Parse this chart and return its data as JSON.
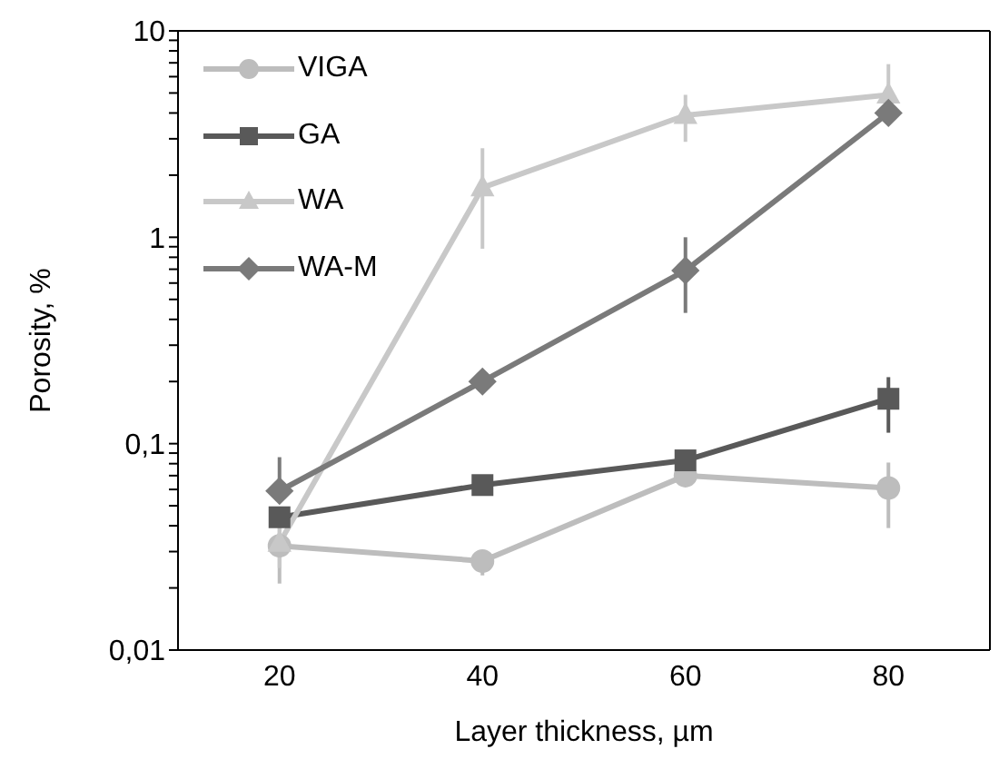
{
  "chart_data": {
    "type": "line",
    "xlabel": "Layer thickness, µm",
    "ylabel": "Porosity, %",
    "categories": [
      "20",
      "40",
      "60",
      "80"
    ],
    "log": "y",
    "ylim": [
      0.01,
      10
    ],
    "yticks": [
      {
        "value": 0.01,
        "label": "0,01"
      },
      {
        "value": 0.02,
        "label": null
      },
      {
        "value": 0.03,
        "label": null
      },
      {
        "value": 0.04,
        "label": null
      },
      {
        "value": 0.05,
        "label": null
      },
      {
        "value": 0.06,
        "label": null
      },
      {
        "value": 0.07,
        "label": null
      },
      {
        "value": 0.08,
        "label": null
      },
      {
        "value": 0.09,
        "label": null
      },
      {
        "value": 0.1,
        "label": "0,1"
      },
      {
        "value": 0.2,
        "label": null
      },
      {
        "value": 0.3,
        "label": null
      },
      {
        "value": 0.4,
        "label": null
      },
      {
        "value": 0.5,
        "label": null
      },
      {
        "value": 0.6,
        "label": null
      },
      {
        "value": 0.7,
        "label": null
      },
      {
        "value": 0.8,
        "label": null
      },
      {
        "value": 0.9,
        "label": null
      },
      1,
      {
        "value": 2,
        "label": null
      },
      {
        "value": 3,
        "label": null
      },
      {
        "value": 4,
        "label": null
      },
      {
        "value": 5,
        "label": null
      },
      {
        "value": 6,
        "label": null
      },
      {
        "value": 7,
        "label": null
      },
      {
        "value": 8,
        "label": null
      },
      {
        "value": 9,
        "label": null
      },
      10
    ],
    "grid": false,
    "legend": "top left",
    "line_style": "solid",
    "series": [
      {
        "name": "VIGA",
        "color": "#bdbdbd",
        "marker": "circle",
        "values": [
          0.032,
          0.027,
          0.07,
          0.061
        ],
        "errors": [
          [
            0.021,
            0.04
          ],
          [
            0.023,
            0.027
          ],
          null,
          [
            0.039,
            0.081
          ]
        ]
      },
      {
        "name": "GA",
        "color": "#595959",
        "marker": "square",
        "values": [
          0.044,
          0.063,
          0.083,
          0.165
        ],
        "errors": [
          null,
          null,
          null,
          [
            0.113,
            0.21
          ]
        ]
      },
      {
        "name": "WA",
        "color": "#c8c8c8",
        "marker": "triangle",
        "values": [
          0.033,
          1.74,
          3.9,
          4.9
        ],
        "errors": [
          [
            0.025,
            0.04
          ],
          [
            0.88,
            2.7
          ],
          [
            2.9,
            4.9
          ],
          [
            3.5,
            6.9
          ]
        ]
      },
      {
        "name": "WA-M",
        "color": "#7a7a7a",
        "marker": "diamond",
        "values": [
          0.059,
          0.2,
          0.69,
          4.0
        ],
        "errors": [
          [
            0.059,
            0.086
          ],
          null,
          [
            0.43,
            1.0
          ],
          null
        ]
      }
    ]
  }
}
